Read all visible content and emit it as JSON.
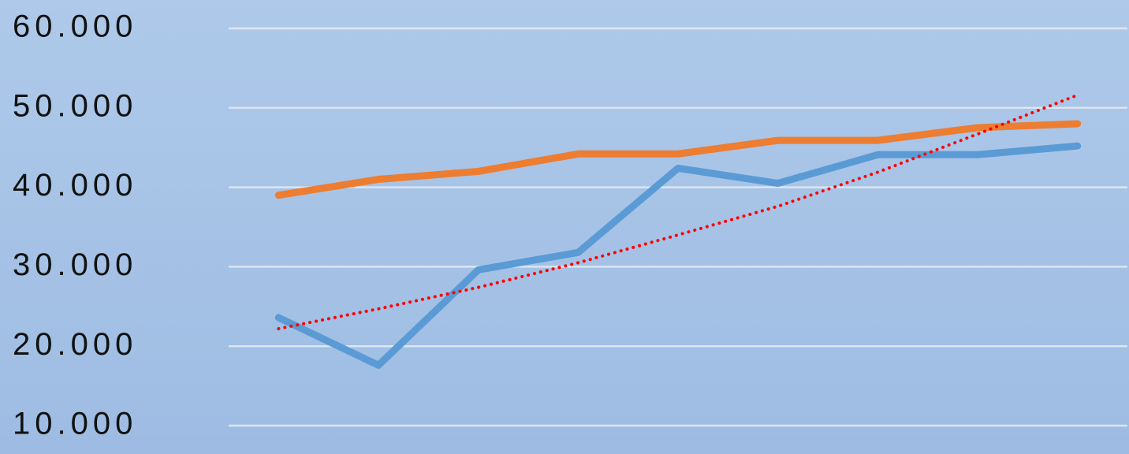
{
  "chart_data": {
    "type": "line",
    "categories": [
      null,
      null,
      null,
      null,
      null,
      null,
      null,
      null,
      null
    ],
    "series": [
      {
        "color": "#5b9bd5",
        "values": [
          23600,
          17600,
          29600,
          31800,
          42400,
          40500,
          44100,
          44100,
          45200
        ]
      },
      {
        "color": "#ed7d31",
        "values": [
          39000,
          41000,
          42000,
          44200,
          44200,
          45900,
          45900,
          47500,
          48000
        ]
      },
      {
        "color": "#ff0000",
        "style": "dotted",
        "values": [
          22200,
          24700,
          27400,
          30500,
          34000,
          37600,
          41900,
          46700,
          51600
        ]
      }
    ],
    "ylim": [
      6430,
      63570
    ],
    "yticks": [
      {
        "value": 10000,
        "label": "10.000"
      },
      {
        "value": 20000,
        "label": "20.000"
      },
      {
        "value": 30000,
        "label": "30.000"
      },
      {
        "value": 40000,
        "label": "40.000"
      },
      {
        "value": 50000,
        "label": "50.000"
      },
      {
        "value": 60000,
        "label": "60.000"
      }
    ],
    "grid": true
  }
}
